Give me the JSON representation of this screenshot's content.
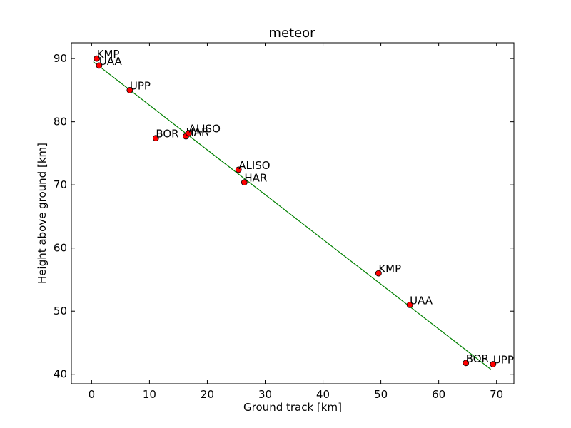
{
  "chart_data": {
    "type": "scatter",
    "title": "meteor",
    "xlabel": "Ground track [km]",
    "ylabel": "Height above ground [km]",
    "xlim": [
      -3.5,
      73
    ],
    "ylim": [
      38.5,
      92.5
    ],
    "xticks": [
      0,
      10,
      20,
      30,
      40,
      50,
      60,
      70
    ],
    "yticks": [
      40,
      50,
      60,
      70,
      80,
      90
    ],
    "grid": false,
    "colors": {
      "points": "#ff0000",
      "point_edge": "#000000",
      "fit_line": "#008000"
    },
    "points": [
      {
        "x": 0.9,
        "y": 90.0,
        "label": "KMP"
      },
      {
        "x": 1.3,
        "y": 88.9,
        "label": "UAA"
      },
      {
        "x": 6.6,
        "y": 85.0,
        "label": "UPP"
      },
      {
        "x": 11.1,
        "y": 77.4,
        "label": "BOR"
      },
      {
        "x": 16.3,
        "y": 77.7,
        "label": "HAR"
      },
      {
        "x": 16.8,
        "y": 78.2,
        "label": "ALISO"
      },
      {
        "x": 25.4,
        "y": 72.4,
        "label": "ALISO"
      },
      {
        "x": 26.4,
        "y": 70.4,
        "label": "HAR"
      },
      {
        "x": 49.6,
        "y": 56.0,
        "label": "KMP"
      },
      {
        "x": 55.0,
        "y": 51.0,
        "label": "UAA"
      },
      {
        "x": 64.7,
        "y": 41.8,
        "label": "BOR"
      },
      {
        "x": 69.4,
        "y": 41.6,
        "label": "UPP"
      }
    ],
    "fit_line": {
      "x": [
        0.3,
        69.0
      ],
      "y": [
        89.5,
        40.8
      ]
    }
  }
}
